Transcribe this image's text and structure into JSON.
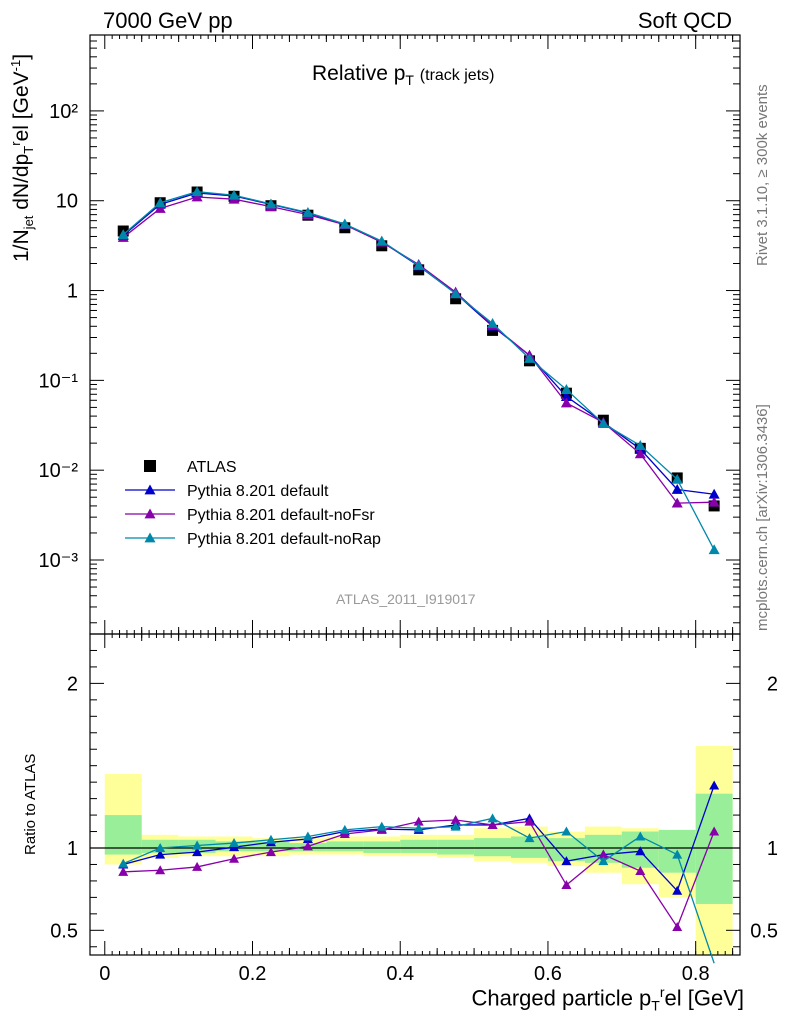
{
  "header": {
    "left": "7000 GeV pp",
    "right": "Soft QCD"
  },
  "side": {
    "rivet": "Rivet 3.1.10, ≥ 300k events",
    "mcplots": "mcplots.cern.ch [arXiv:1306.3436]"
  },
  "chart_data": {
    "type": "scatter",
    "title": "Relative pT (track jets)",
    "analysis_label": "ATLAS_2011_I919017",
    "xlabel": "Charged particle pTrel [GeV]",
    "ylabel": "1/Njet dN/dpTrel [GeV-1]",
    "ratio_ylabel": "Ratio to ATLAS",
    "xlim": [
      -0.02,
      0.86
    ],
    "ylim": [
      0.00015,
      700
    ],
    "yscale": "log",
    "ratio_ylim": [
      0.35,
      2.3
    ],
    "x_ticks": [
      "0",
      "0.2",
      "0.4",
      "0.6",
      "0.8"
    ],
    "y_ticks": [
      "10⁻³",
      "10⁻²",
      "10⁻¹",
      "1",
      "10",
      "10²"
    ],
    "ratio_ticks": [
      "0.5",
      "1",
      "2"
    ],
    "x": [
      0.025,
      0.075,
      0.125,
      0.175,
      0.225,
      0.275,
      0.325,
      0.375,
      0.425,
      0.475,
      0.525,
      0.575,
      0.625,
      0.675,
      0.725,
      0.775,
      0.825
    ],
    "bin_edges": [
      0.0,
      0.05,
      0.1,
      0.15,
      0.2,
      0.25,
      0.3,
      0.35,
      0.4,
      0.45,
      0.5,
      0.55,
      0.6,
      0.65,
      0.7,
      0.75,
      0.8,
      0.85
    ],
    "legend_position": "bottom-left",
    "series": [
      {
        "name": "ATLAS",
        "color": "#000000",
        "marker": "square",
        "values": [
          4.6,
          9.5,
          12.5,
          11.2,
          8.8,
          6.9,
          5.0,
          3.15,
          1.7,
          0.81,
          0.36,
          0.165,
          0.072,
          0.036,
          0.0175,
          0.0082,
          0.004
        ]
      },
      {
        "name": "Pythia 8.201 default",
        "color": "#0000cc",
        "marker": "triangle",
        "values": [
          4.1,
          9.1,
          12.2,
          11.3,
          9.1,
          7.3,
          5.45,
          3.5,
          1.88,
          0.93,
          0.4,
          0.19,
          0.066,
          0.034,
          0.0172,
          0.0061,
          0.0054
        ],
        "ratio": [
          0.9,
          0.96,
          0.975,
          1.005,
          1.035,
          1.055,
          1.1,
          1.115,
          1.11,
          1.14,
          1.14,
          1.18,
          0.92,
          0.96,
          0.98,
          0.74,
          1.38
        ]
      },
      {
        "name": "Pythia 8.201 default-noFsr",
        "color": "#8800aa",
        "marker": "triangle",
        "values": [
          3.9,
          8.2,
          11.0,
          10.4,
          8.6,
          7.0,
          5.4,
          3.45,
          1.95,
          0.96,
          0.41,
          0.19,
          0.056,
          0.034,
          0.0152,
          0.0043,
          0.0044
        ],
        "ratio": [
          0.855,
          0.865,
          0.885,
          0.935,
          0.975,
          1.01,
          1.085,
          1.11,
          1.16,
          1.17,
          1.14,
          1.16,
          0.775,
          0.96,
          0.86,
          0.52,
          1.1
        ]
      },
      {
        "name": "Pythia 8.201 default-noRap",
        "color": "#0088aa",
        "marker": "triangle",
        "values": [
          4.2,
          9.5,
          12.6,
          11.5,
          9.2,
          7.4,
          5.5,
          3.55,
          1.9,
          0.92,
          0.43,
          0.175,
          0.079,
          0.033,
          0.0188,
          0.0079,
          0.0013
        ],
        "ratio": [
          0.905,
          1.0,
          1.015,
          1.03,
          1.05,
          1.07,
          1.11,
          1.13,
          1.12,
          1.13,
          1.18,
          1.06,
          1.1,
          0.92,
          1.07,
          0.96,
          0.3
        ]
      }
    ],
    "ratio_band_yellow": [
      [
        0.9,
        1.45
      ],
      [
        0.94,
        1.08
      ],
      [
        0.95,
        1.07
      ],
      [
        0.95,
        1.07
      ],
      [
        0.95,
        1.06
      ],
      [
        0.96,
        1.06
      ],
      [
        0.96,
        1.07
      ],
      [
        0.95,
        1.07
      ],
      [
        0.95,
        1.08
      ],
      [
        0.94,
        1.08
      ],
      [
        0.92,
        1.12
      ],
      [
        0.91,
        1.13
      ],
      [
        0.89,
        1.1
      ],
      [
        0.85,
        1.13
      ],
      [
        0.78,
        1.12
      ],
      [
        0.7,
        1.1
      ],
      [
        0.3,
        1.62
      ]
    ],
    "ratio_band_green": [
      [
        0.96,
        1.2
      ],
      [
        0.97,
        1.05
      ],
      [
        0.97,
        1.05
      ],
      [
        0.98,
        1.04
      ],
      [
        0.98,
        1.04
      ],
      [
        0.98,
        1.03
      ],
      [
        0.98,
        1.04
      ],
      [
        0.97,
        1.04
      ],
      [
        0.97,
        1.05
      ],
      [
        0.96,
        1.05
      ],
      [
        0.95,
        1.06
      ],
      [
        0.94,
        1.07
      ],
      [
        0.92,
        1.06
      ],
      [
        0.91,
        1.08
      ],
      [
        0.88,
        1.1
      ],
      [
        0.85,
        1.11
      ],
      [
        0.66,
        1.33
      ]
    ]
  }
}
